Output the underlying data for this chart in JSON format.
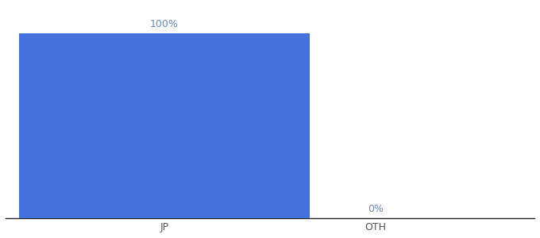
{
  "categories": [
    "JP",
    "OTH"
  ],
  "values": [
    100,
    0
  ],
  "bar_color": "#4472dd",
  "label_color": "#6688cc",
  "tick_color": "#555555",
  "background_color": "#ffffff",
  "ylim": [
    0,
    115
  ],
  "bar_width": 0.55,
  "label_fontsize": 9,
  "tick_fontsize": 9,
  "x_positions": [
    0.3,
    0.7
  ],
  "xlim": [
    0.0,
    1.0
  ]
}
